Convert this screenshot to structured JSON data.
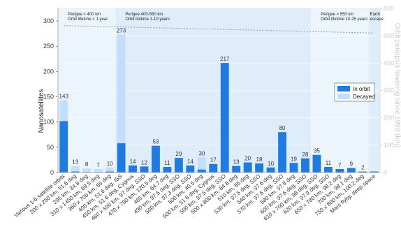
{
  "chart_data": {
    "type": "bar",
    "categories": [
      "Various 1-6 satellite orbits",
      "200 x 250 km, 51.6 deg",
      "295 km, 34.8 deg",
      "310 x 1450 km, 69.5 deg",
      "360 x 700 km, 55 deg",
      "400 km, 51.6 deg, ISS",
      "450 km, 51.6 deg, Cygnus",
      "460 x 590 km, 97 deg, SSO",
      "470 x 780 km, 120.5 deg",
      "485 km, 64.7 deg",
      "490 km, 97.5 deg, SSO",
      "500 km, 97.3 deg, SSO",
      "500 km, 40.5 deg",
      "500 km, 51.6 deg, Cygnus",
      "500 km, 97.5 deg, SSO",
      "500 x 800 km, 64.8 deg",
      "510 km, 85 deg",
      "530 km, 97.5 deg, SSO",
      "540 km, 97.6 deg",
      "570 km, 97.6 deg, SSO",
      "580 km, 97.8 deg",
      "600 km, 97.6 deg, SSO",
      "610 x 700 km, 98 deg, SSO",
      "620 km, 97.9 deg, SSO",
      "650 x 780 km, 98.2 deg",
      "700 km, 98.1 deg",
      "750 x 800 km, 100.2 deg",
      "Mars flyby, deep space"
    ],
    "series": [
      {
        "name": "In orbit",
        "values": [
          102,
          2,
          1,
          1,
          2,
          58,
          14,
          12,
          53,
          11,
          29,
          14,
          6,
          17,
          217,
          13,
          20,
          18,
          10,
          80,
          19,
          28,
          35,
          11,
          7,
          9,
          2,
          2
        ]
      },
      {
        "name": "Decayed",
        "values": [
          41,
          11,
          7,
          6,
          8,
          215,
          0,
          0,
          0,
          0,
          0,
          0,
          24,
          0,
          0,
          0,
          0,
          0,
          0,
          0,
          0,
          0,
          0,
          0,
          0,
          0,
          0,
          0
        ]
      }
    ],
    "totals": [
      "143",
      "13",
      "8",
      "7",
      "10",
      "273",
      "14",
      "12",
      "53",
      "11",
      "29",
      "14",
      "30",
      "17",
      "217",
      "13",
      "20",
      "18",
      "10",
      "80",
      "19",
      "28",
      "35",
      "11",
      "7",
      "9",
      "2",
      ""
    ],
    "ylabel": "Nanosatellites",
    "ylim": [
      0,
      325
    ],
    "yticks": [
      "0",
      "50",
      "100",
      "150",
      "200",
      "250",
      "300"
    ],
    "y2label": "Orbit periapsis lowering since 1998 (km)",
    "y2lim": [
      0,
      600
    ],
    "y2ticks": [
      "0",
      "100",
      "200",
      "300",
      "400",
      "500",
      "600"
    ],
    "trend": {
      "start_km": 537,
      "end_km": 510
    },
    "zones": [
      {
        "line1": "Perigee < 400 km",
        "line2": "Orbit lifetime < 1 year",
        "from": 0,
        "to": 4
      },
      {
        "line1": "Perigee 400-550 km",
        "line2": "Orbit lifetime 1-10 years",
        "from": 5,
        "to": 21
      },
      {
        "line1": "Perigee > 550 km",
        "line2": "Orbit lifetime 10-25 years",
        "from": 22,
        "to": 26
      },
      {
        "line1": "Earth",
        "line2": "escape",
        "from": 27,
        "to": 27
      }
    ],
    "legend_position": "right",
    "colors": {
      "in_orbit": "#1f7be0",
      "decayed": "#c3defc",
      "zone_light": "#edf5fc",
      "zone_mid": "#deedf9",
      "axis": "#999999",
      "trend": "#9a9a9a"
    }
  }
}
